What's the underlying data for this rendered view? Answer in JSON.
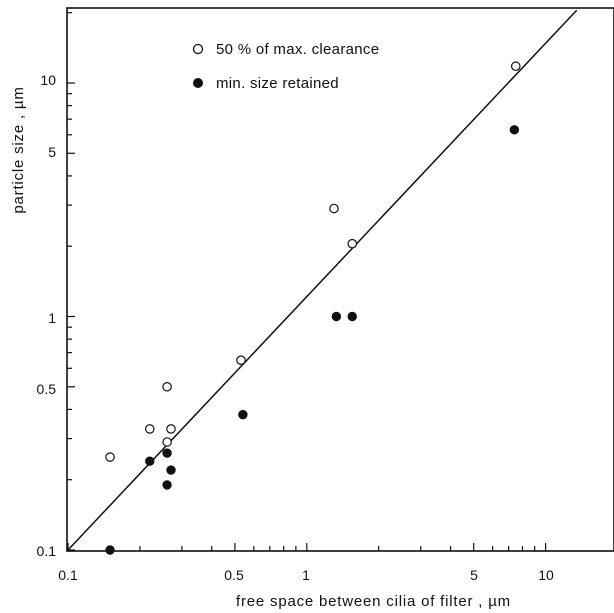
{
  "chart_data": {
    "type": "scatter",
    "title": "",
    "xlabel": "free space between cilia of filter , µm",
    "ylabel": "particle size , µm",
    "xscale": "log",
    "yscale": "log",
    "xlim": [
      0.1,
      15
    ],
    "ylim": [
      0.1,
      20
    ],
    "x_ticks": [
      0.1,
      0.5,
      1,
      5,
      10
    ],
    "x_tick_labels": [
      "0.1",
      "0.5",
      "1",
      "5",
      "10"
    ],
    "y_ticks": [
      0.1,
      0.5,
      1,
      5,
      10
    ],
    "y_tick_labels": [
      "0.1",
      "0.5",
      "1",
      "5",
      "10"
    ],
    "grid": false,
    "legend_position": "top-left",
    "series": [
      {
        "name": "50 % of max. clearance",
        "marker": "open-circle",
        "points": [
          {
            "x": 0.15,
            "y": 0.25
          },
          {
            "x": 0.22,
            "y": 0.33
          },
          {
            "x": 0.26,
            "y": 0.29
          },
          {
            "x": 0.26,
            "y": 0.5
          },
          {
            "x": 0.27,
            "y": 0.33
          },
          {
            "x": 0.53,
            "y": 0.65
          },
          {
            "x": 1.3,
            "y": 2.9
          },
          {
            "x": 1.55,
            "y": 2.05
          },
          {
            "x": 7.5,
            "y": 11.8
          }
        ]
      },
      {
        "name": "min. size retained",
        "marker": "filled-circle",
        "points": [
          {
            "x": 0.15,
            "y": 0.1
          },
          {
            "x": 0.22,
            "y": 0.24
          },
          {
            "x": 0.26,
            "y": 0.26
          },
          {
            "x": 0.26,
            "y": 0.19
          },
          {
            "x": 0.27,
            "y": 0.22
          },
          {
            "x": 0.54,
            "y": 0.38
          },
          {
            "x": 1.33,
            "y": 1.0
          },
          {
            "x": 1.55,
            "y": 1.0
          },
          {
            "x": 7.4,
            "y": 6.3
          }
        ]
      }
    ],
    "lines": [
      {
        "name": "",
        "x": [
          0.1,
          13.5
        ],
        "y": [
          0.1,
          20.5
        ]
      }
    ]
  }
}
